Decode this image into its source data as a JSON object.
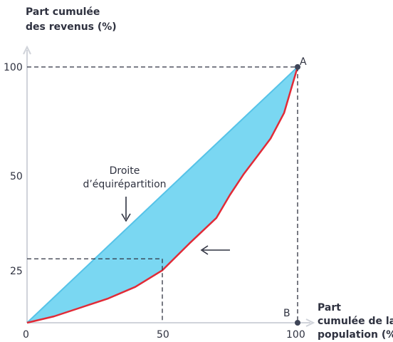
{
  "chart_data": {
    "type": "line",
    "ylabel_line1": "Part cumulée",
    "ylabel_line2": "des revenus (%)",
    "xlabel_line1": "Part",
    "xlabel_line2": "cumulée de la",
    "xlabel_line3": "population (%)",
    "x_ticks": [
      "0",
      "50",
      "100"
    ],
    "y_ticks": [
      "100",
      "50",
      "25"
    ],
    "xlim": [
      0,
      100
    ],
    "ylim": [
      0,
      100
    ],
    "equality_line": {
      "label_line1": "Droite",
      "label_line2": "d’équirépartition",
      "x": [
        0,
        100
      ],
      "y": [
        0,
        100
      ]
    },
    "lorenz_curve": {
      "x": [
        0,
        10,
        20,
        30,
        40,
        50,
        60,
        70,
        75,
        80,
        85,
        90,
        95,
        100
      ],
      "y": [
        0,
        2.5,
        6,
        9.5,
        14,
        20.5,
        31,
        41,
        50,
        58,
        65,
        72,
        82,
        100
      ]
    },
    "reference_point": {
      "x": 50,
      "y": 25
    },
    "point_A": {
      "label": "A",
      "x": 100,
      "y": 100
    },
    "point_B": {
      "label": "B",
      "x": 100,
      "y": 0
    },
    "colors": {
      "fill": "#7ad7f2",
      "equality": "#56c3e8",
      "curve": "#e12b37",
      "axis": "#d0d3da",
      "dash": "#2f3240"
    }
  }
}
